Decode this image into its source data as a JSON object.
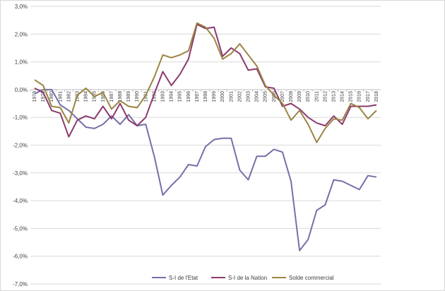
{
  "chart_data": {
    "type": "line",
    "title": "",
    "xlabel": "",
    "ylabel": "",
    "ylim": [
      -7,
      3
    ],
    "y_ticks": [
      3,
      2,
      1,
      0,
      -1,
      -2,
      -3,
      -4,
      -5,
      -6,
      -7
    ],
    "y_tick_labels": [
      "3,0%",
      "2,0%",
      "1,0%",
      "0,0%",
      "-1,0%",
      "-2,0%",
      "-3,0%",
      "-4,0%",
      "-5,0%",
      "-6,0%",
      "-7,0%"
    ],
    "x": [
      "1978",
      "1979",
      "1980",
      "1981",
      "1982",
      "1983",
      "1984",
      "1985",
      "1986",
      "1987",
      "1988",
      "1989",
      "1990",
      "1991",
      "1992",
      "1993",
      "1994",
      "1995",
      "1996",
      "1997",
      "1998",
      "1999",
      "2000",
      "2001",
      "2002",
      "2003",
      "2004",
      "2005",
      "2006",
      "2007",
      "2008",
      "2009",
      "2010",
      "2011",
      "2012",
      "2013",
      "2014",
      "2015",
      "2016",
      "2017",
      "2018"
    ],
    "grid": "horizontal",
    "legend_position": "bottom",
    "series": [
      {
        "name": "S-I de l'Etat",
        "color": "#7570a8",
        "values": [
          -0.15,
          0.0,
          0.0,
          -0.55,
          -0.75,
          -1.05,
          -1.35,
          -1.4,
          -1.25,
          -0.95,
          -1.25,
          -0.9,
          -1.3,
          -1.25,
          -2.4,
          -3.8,
          -3.45,
          -3.15,
          -2.7,
          -2.75,
          -2.05,
          -1.8,
          -1.75,
          -1.75,
          -2.9,
          -3.25,
          -2.4,
          -2.4,
          -2.15,
          -2.25,
          -3.3,
          -5.8,
          -5.4,
          -4.35,
          -4.15,
          -3.25,
          -3.3,
          -3.45,
          -3.6,
          -3.1,
          -3.15
        ]
      },
      {
        "name": "S-I de la Nation",
        "color": "#8b3a6e",
        "values": [
          0.05,
          -0.1,
          -0.75,
          -0.85,
          -1.7,
          -1.1,
          -0.95,
          -1.05,
          -0.6,
          -1.05,
          -0.5,
          -1.1,
          -1.3,
          -1.0,
          -0.15,
          0.65,
          0.15,
          0.55,
          1.1,
          2.35,
          2.2,
          2.25,
          1.2,
          1.5,
          1.3,
          0.7,
          0.75,
          0.1,
          0.05,
          -0.6,
          -0.5,
          -0.7,
          -1.0,
          -1.2,
          -1.3,
          -0.95,
          -1.25,
          -0.6,
          -0.6,
          -0.6,
          -0.55
        ]
      },
      {
        "name": "Solde commercial",
        "color": "#9b8442",
        "values": [
          0.35,
          0.15,
          -0.6,
          -0.65,
          -1.2,
          -0.2,
          0.05,
          -0.25,
          -0.1,
          -0.7,
          -0.4,
          -0.6,
          -0.65,
          -0.2,
          0.45,
          1.25,
          1.15,
          1.25,
          1.4,
          2.4,
          2.25,
          1.85,
          1.1,
          1.3,
          1.65,
          1.25,
          0.85,
          0.15,
          -0.2,
          -0.5,
          -1.1,
          -0.75,
          -1.25,
          -1.9,
          -1.4,
          -1.05,
          -1.1,
          -0.5,
          -0.65,
          -1.05,
          -0.75
        ]
      }
    ]
  }
}
